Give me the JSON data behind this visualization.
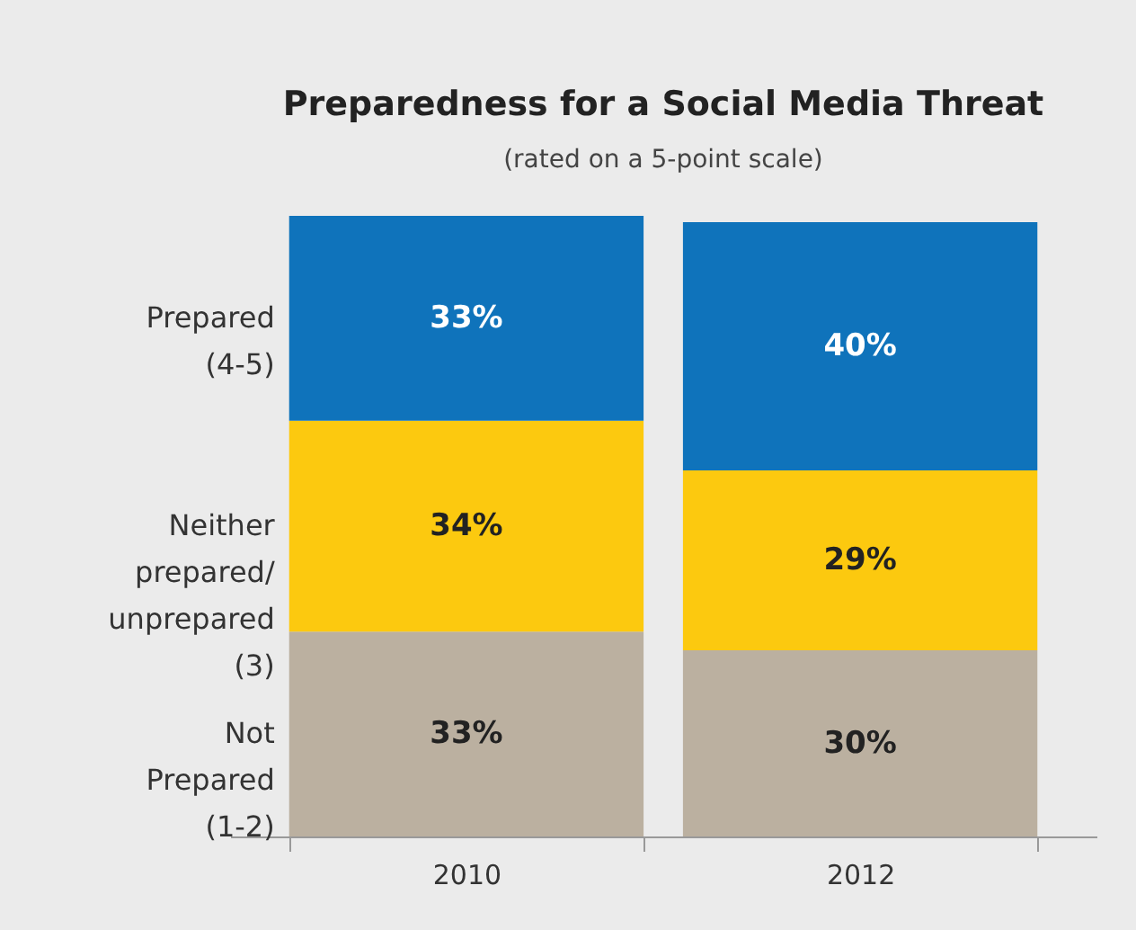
{
  "chart_data": {
    "type": "bar",
    "title": "Preparedness for a Social Media Threat",
    "subtitle": "(rated on a 5-point scale)",
    "categories": [
      "2010",
      "2012"
    ],
    "stacked": true,
    "series": [
      {
        "name": "Not\nPrepared\n (1-2)",
        "color": "#bbb0a0",
        "values": [
          33,
          30
        ],
        "value_labels": [
          "33%",
          "30%"
        ]
      },
      {
        "name": "Neither\nprepared/\nunprepared\n(3)",
        "color": "#fcc90f",
        "values": [
          34,
          29
        ],
        "value_labels": [
          "34%",
          "29%"
        ]
      },
      {
        "name": "Prepared\n(4-5)",
        "color": "#0f73bb",
        "values": [
          33,
          40
        ],
        "value_labels": [
          "33%",
          "40%"
        ]
      }
    ]
  }
}
